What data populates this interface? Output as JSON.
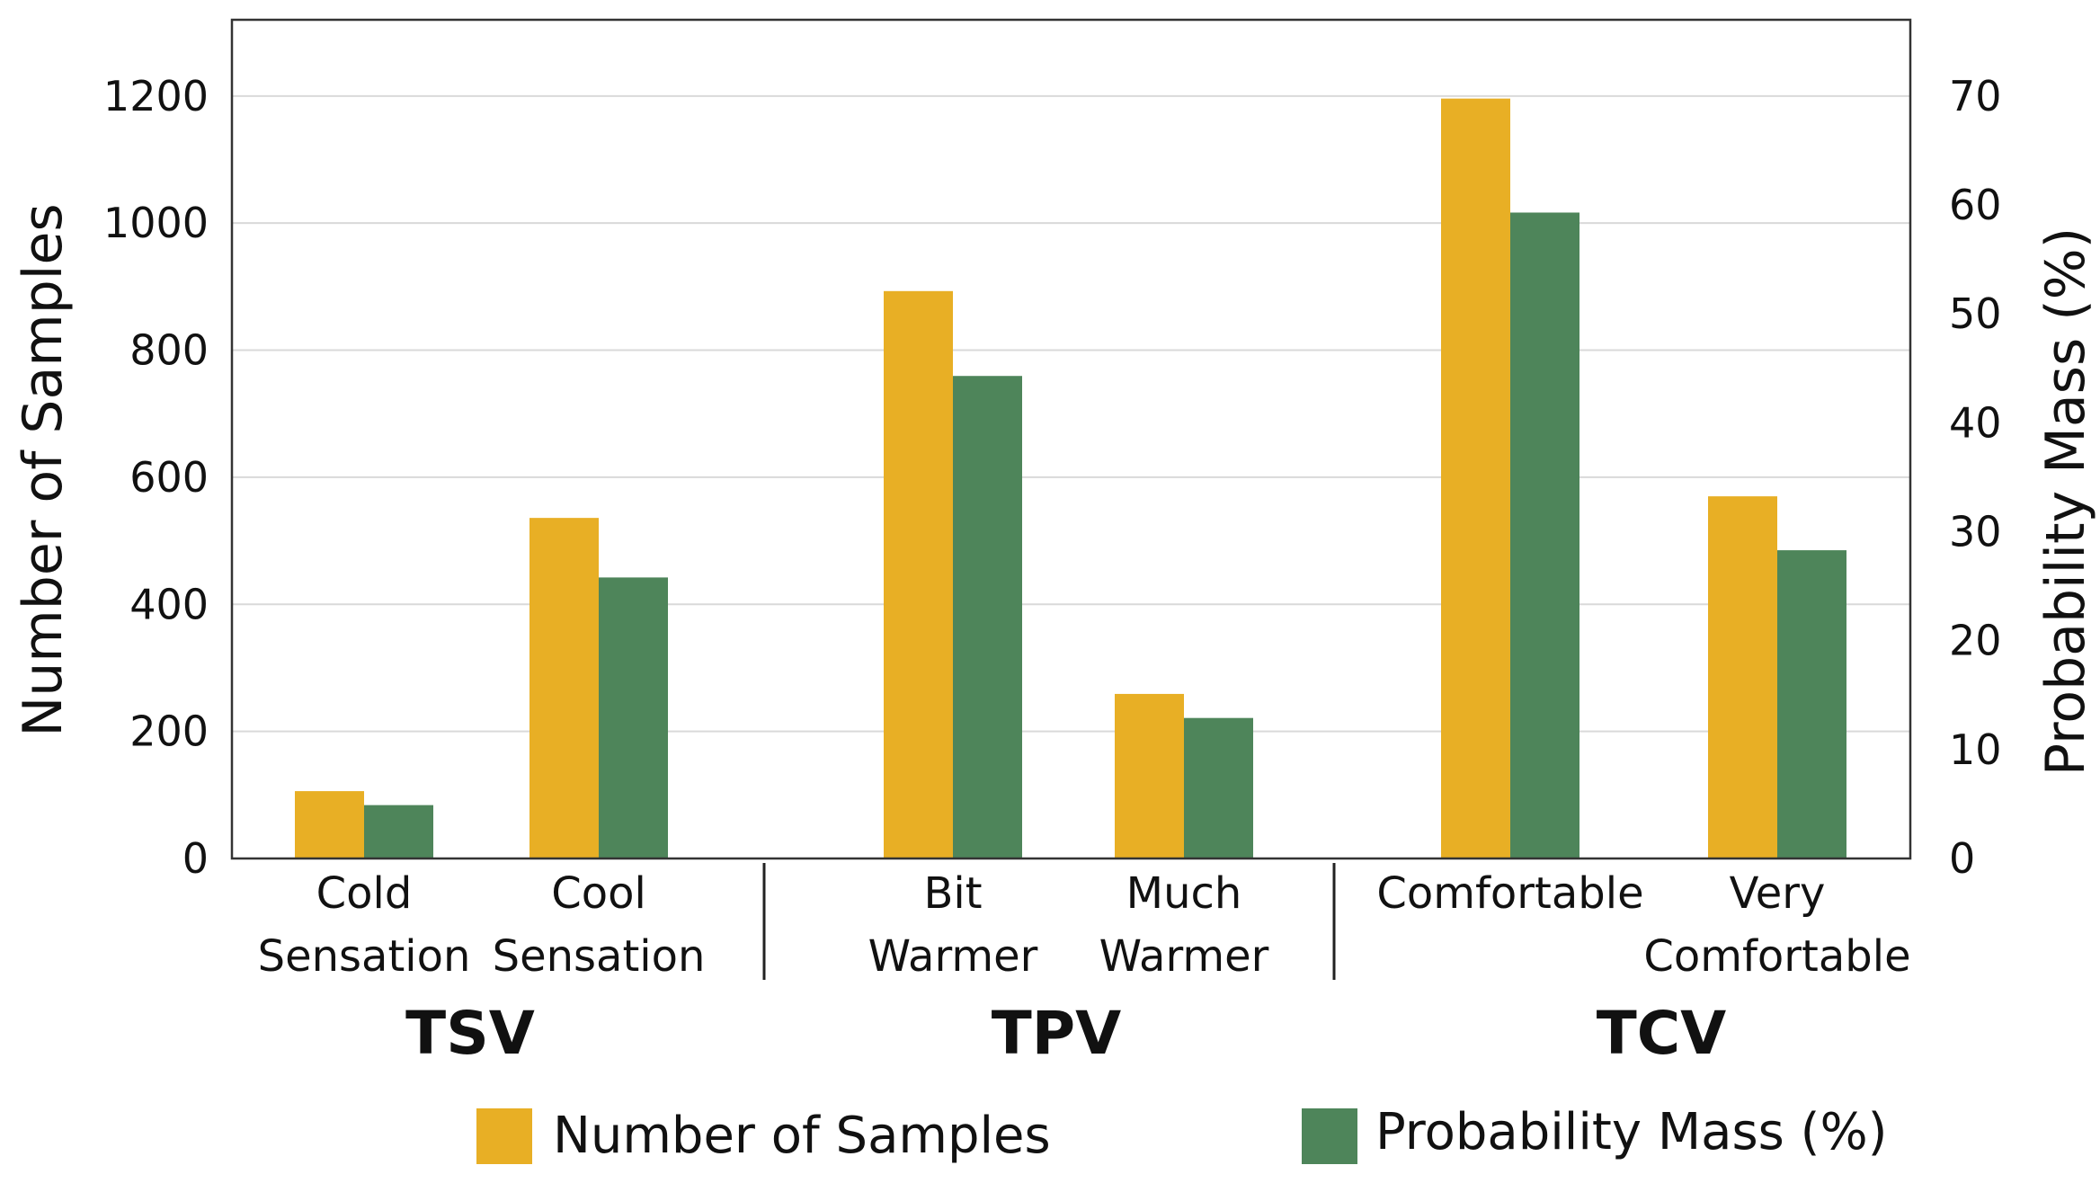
{
  "chart_data": {
    "type": "bar",
    "categories": [
      [
        "Cold",
        "Sensation"
      ],
      [
        "Cool",
        "Sensation"
      ],
      [
        "Bit",
        "Warmer"
      ],
      [
        "Much",
        "Warmer"
      ],
      [
        "Comfortable"
      ],
      [
        "Very",
        "Comfortable"
      ]
    ],
    "groups": [
      {
        "label": "TSV",
        "categories": [
          0,
          1
        ]
      },
      {
        "label": "TPV",
        "categories": [
          2,
          3
        ]
      },
      {
        "label": "TCV",
        "categories": [
          4,
          5
        ]
      }
    ],
    "series": [
      {
        "name": "Number of Samples",
        "axis": "left",
        "color": "#E8AF25",
        "values": [
          106,
          536,
          893,
          259,
          1196,
          570
        ]
      },
      {
        "name": "Probability Mass (%)",
        "axis": "right",
        "color": "#4E855A",
        "values": [
          4.9,
          25.8,
          44.3,
          12.9,
          59.3,
          28.3
        ]
      }
    ],
    "ylabel": "Number of Samples",
    "ylabel_right": "Probability Mass (%)",
    "ylim": [
      0,
      1320
    ],
    "ylim_right": [
      0,
      77
    ],
    "yticks": [
      0,
      200,
      400,
      600,
      800,
      1000,
      1200
    ],
    "yticks_right": [
      0,
      10,
      20,
      30,
      40,
      50,
      60,
      70
    ],
    "grid": true,
    "legend": "bottom"
  }
}
